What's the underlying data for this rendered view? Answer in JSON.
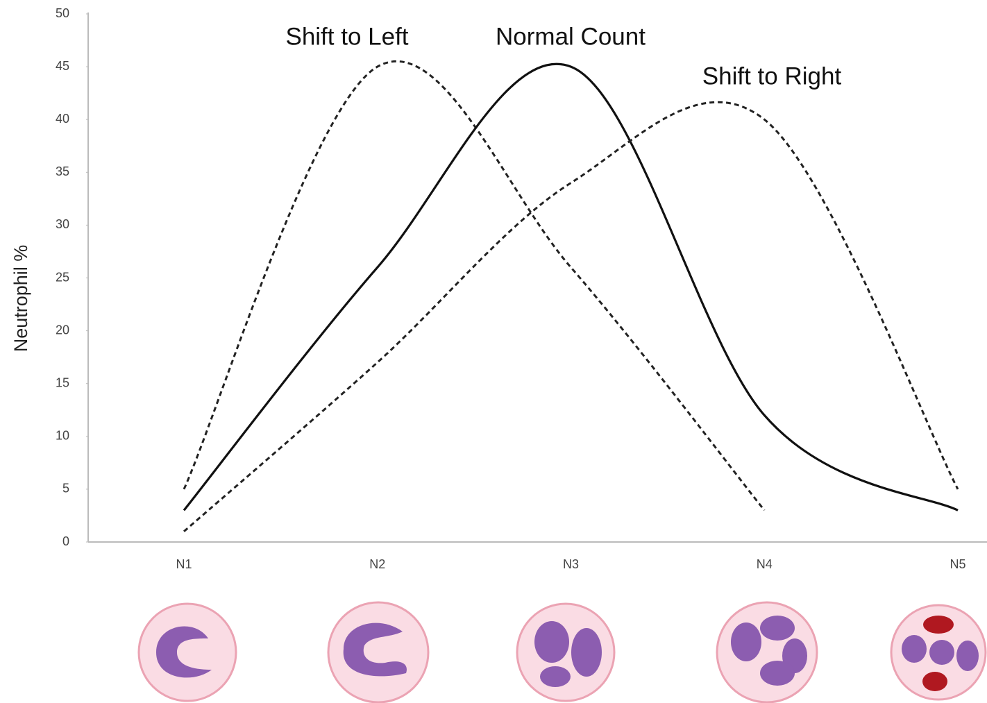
{
  "chart_data": {
    "type": "line",
    "y_label": "Neutrophil %",
    "categories": [
      "N1",
      "N2",
      "N3",
      "N4",
      "N5"
    ],
    "ylim": [
      0,
      50
    ],
    "yticks": [
      0,
      5,
      10,
      15,
      20,
      25,
      30,
      35,
      40,
      45,
      50
    ],
    "grid": false,
    "series": [
      {
        "name": "Shift to Left",
        "color": "#222222",
        "dashed": true,
        "values": [
          5,
          45,
          26,
          3,
          null
        ]
      },
      {
        "name": "Normal Count",
        "color": "#111111",
        "dashed": false,
        "values": [
          3,
          26,
          45,
          12,
          3
        ]
      },
      {
        "name": "Shift to Right",
        "color": "#222222",
        "dashed": true,
        "values": [
          1,
          17,
          34,
          40,
          5
        ]
      }
    ]
  }
}
